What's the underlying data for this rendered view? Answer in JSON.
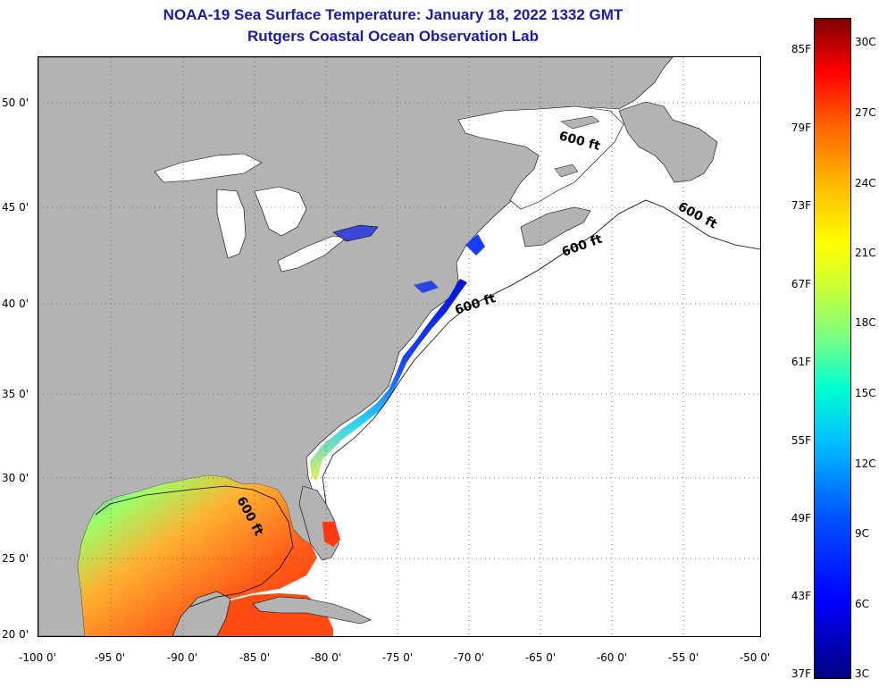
{
  "title": {
    "line1": "NOAA-19 Sea Surface Temperature:  January 18, 2022 1332 GMT",
    "line2": "Rutgers Coastal Ocean Observation Lab"
  },
  "map": {
    "lon_range": [
      -100,
      -50
    ],
    "lat_range": [
      20,
      52
    ],
    "lat_ticks": [
      "50 0'",
      "45 0'",
      "40 0'",
      "35 0'",
      "30 0'",
      "25 0'",
      "20 0'"
    ],
    "lon_ticks": [
      "-100 0'",
      "-95 0'",
      "-90 0'",
      "-85 0'",
      "-80 0'",
      "-75 0'",
      "-70 0'",
      "-65 0'",
      "-60 0'",
      "-55 0'",
      "-50 0'"
    ],
    "contour_labels": [
      "600 ft",
      "600 ft",
      "600 ft",
      "600 ft",
      "600 ft"
    ],
    "colors": {
      "land": "#b3b3b3",
      "ocean_no_data": "#ffffff",
      "grid": "#555555"
    }
  },
  "colorbar": {
    "fahrenheit_labels": [
      "85F",
      "79F",
      "73F",
      "67F",
      "61F",
      "55F",
      "49F",
      "43F",
      "37F"
    ],
    "celsius_labels": [
      "30C",
      "27C",
      "24C",
      "21C",
      "18C",
      "15C",
      "12C",
      "9C",
      "6C",
      "3C"
    ],
    "range_c": [
      3,
      31
    ],
    "colormap": "jet"
  }
}
